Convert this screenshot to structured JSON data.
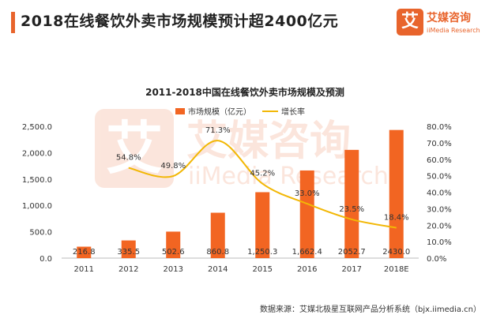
{
  "header": {
    "title": "2018在线餐饮外卖市场规模预计超2400亿元",
    "accent_color": "#e8642c"
  },
  "logo": {
    "mark": "艾",
    "name": "艾媒咨询",
    "subtitle": "iiMedia Research",
    "color": "#e8642c"
  },
  "watermark": {
    "mark": "艾",
    "name": "艾媒咨询",
    "subtitle": "iiMedia Research"
  },
  "chart_data": {
    "type": "bar",
    "title": "2011-2018中国在线餐饮外卖市场规模及预测",
    "categories": [
      "2011",
      "2012",
      "2013",
      "2014",
      "2015",
      "2016",
      "2017",
      "2018E"
    ],
    "series": [
      {
        "name": "市场规模（亿元）",
        "type": "bar",
        "axis": "left",
        "color": "#f26522",
        "values": [
          216.8,
          335.5,
          502.6,
          860.8,
          1250.3,
          1662.4,
          2052.7,
          2430.0
        ],
        "labels": [
          "216.8",
          "335.5",
          "502.6",
          "860.8",
          "1,250.3",
          "1,662.4",
          "2052.7",
          "2430.0"
        ]
      },
      {
        "name": "增长率",
        "type": "line",
        "axis": "right",
        "color": "#f2b705",
        "values": [
          null,
          54.8,
          49.8,
          71.3,
          45.2,
          33.0,
          23.5,
          18.4
        ],
        "labels": [
          "",
          "54.8%",
          "49.8%",
          "71.3%",
          "45.2%",
          "33.0%",
          "23.5%",
          "18.4%"
        ]
      }
    ],
    "y_left": {
      "min": 0,
      "max": 2500,
      "ticks": [
        "0.0",
        "500.0",
        "1,000.0",
        "1,500.0",
        "2,000.0",
        "2,500.0"
      ]
    },
    "y_right": {
      "min": 0,
      "max": 80,
      "ticks": [
        "0.0%",
        "10.0%",
        "20.0%",
        "30.0%",
        "40.0%",
        "50.0%",
        "60.0%",
        "70.0%",
        "80.0%"
      ]
    },
    "grid": false,
    "legend_position": "top"
  },
  "source": "数据来源：艾媒北极星互联网产品分析系统（bjx.iimedia.cn）"
}
